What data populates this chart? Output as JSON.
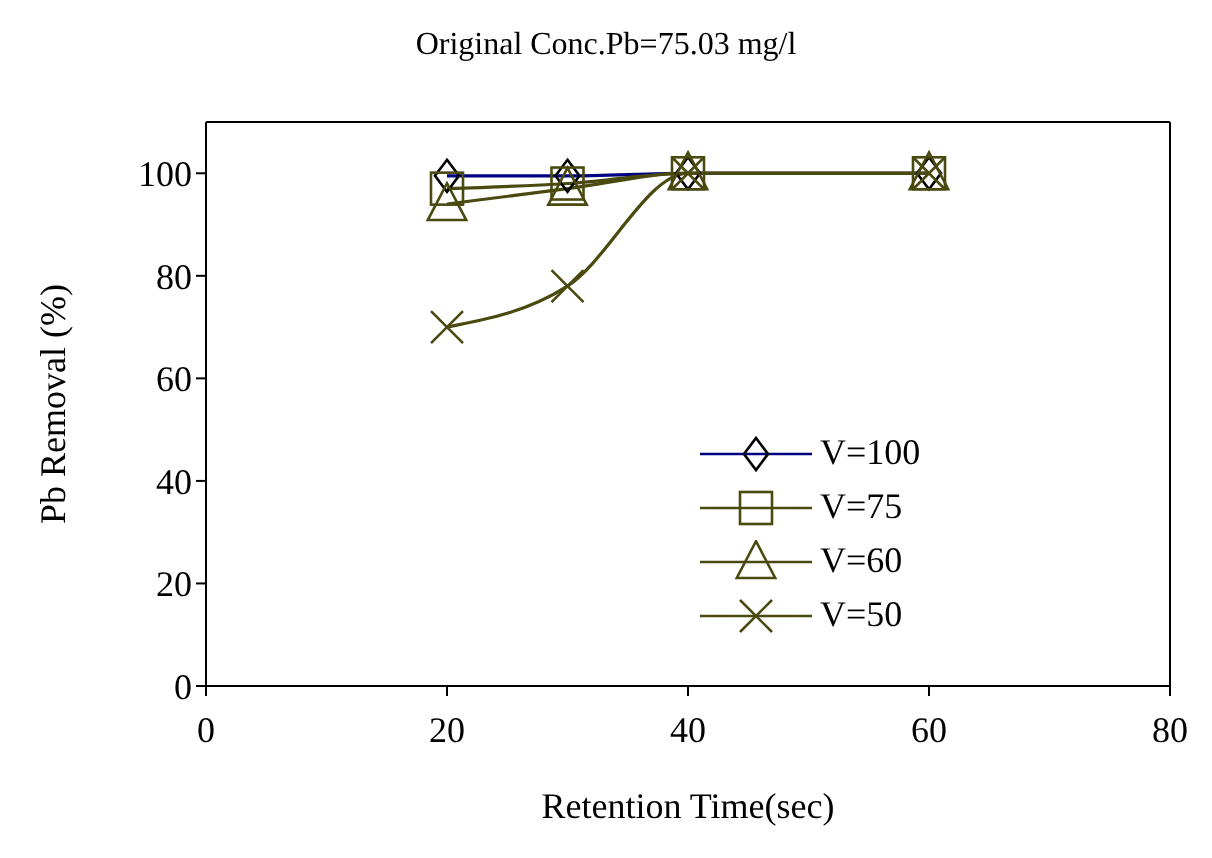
{
  "chart_data": {
    "type": "line",
    "title": "Original Conc.Pb=75.03 mg/l",
    "xlabel": "Retention Time(sec)",
    "ylabel": "Pb  Removal (%)",
    "x": [
      20,
      30,
      40,
      60
    ],
    "series": [
      {
        "name": "V=100",
        "color": "#000080",
        "marker": "diamond",
        "values": [
          99.5,
          99.5,
          100,
          100
        ]
      },
      {
        "name": "V=75",
        "color": "#4a4a10",
        "marker": "square",
        "values": [
          97,
          98,
          100,
          100
        ]
      },
      {
        "name": "V=60",
        "color": "#4a4a10",
        "marker": "triangle",
        "values": [
          94,
          97,
          100,
          100
        ]
      },
      {
        "name": "V=50",
        "color": "#4a4a10",
        "marker": "cross",
        "values": [
          70,
          78,
          100,
          100
        ]
      }
    ],
    "xlim": [
      0,
      80
    ],
    "xticks": [
      0,
      20,
      40,
      60,
      80
    ],
    "ylim": [
      0,
      110
    ],
    "yticks": [
      0,
      20,
      40,
      60,
      80,
      100
    ],
    "grid": false,
    "legend": "bottom right"
  }
}
